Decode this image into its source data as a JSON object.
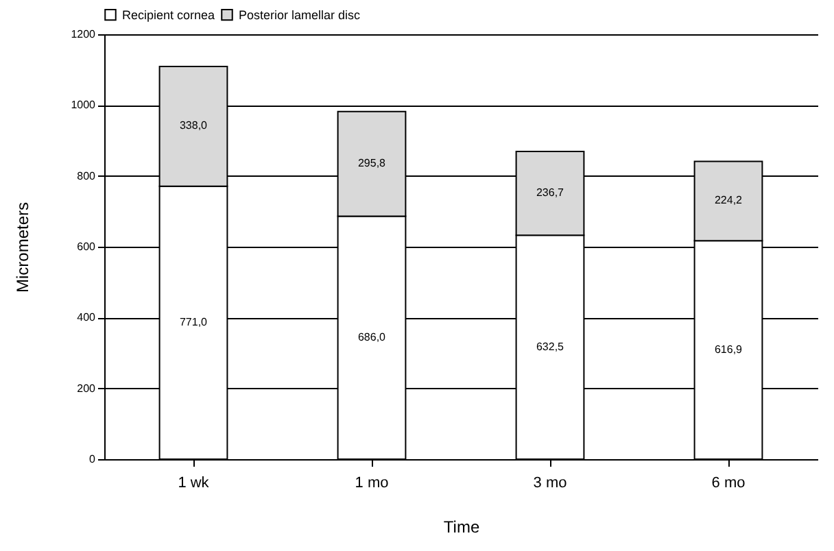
{
  "chart_data": {
    "type": "bar",
    "stacked": true,
    "xlabel": "Time",
    "ylabel": "Micrometers",
    "categories": [
      "1 wk",
      "1 mo",
      "3 mo",
      "6 mo"
    ],
    "series": [
      {
        "name": "Recipient cornea",
        "color": "#ffffff",
        "values": [
          771.0,
          686.0,
          632.5,
          616.9
        ],
        "value_labels": [
          "771,0",
          "686,0",
          "632,5",
          "616,9"
        ]
      },
      {
        "name": "Posterior lamellar disc",
        "color": "#d9d9d9",
        "values": [
          338.0,
          295.8,
          236.7,
          224.2
        ],
        "value_labels": [
          "338,0",
          "295,8",
          "236,7",
          "224,2"
        ]
      }
    ],
    "ylim": [
      0,
      1200
    ],
    "yticks": [
      0,
      200,
      400,
      600,
      800,
      1000,
      1200
    ],
    "grid": "y",
    "legend": "top"
  }
}
